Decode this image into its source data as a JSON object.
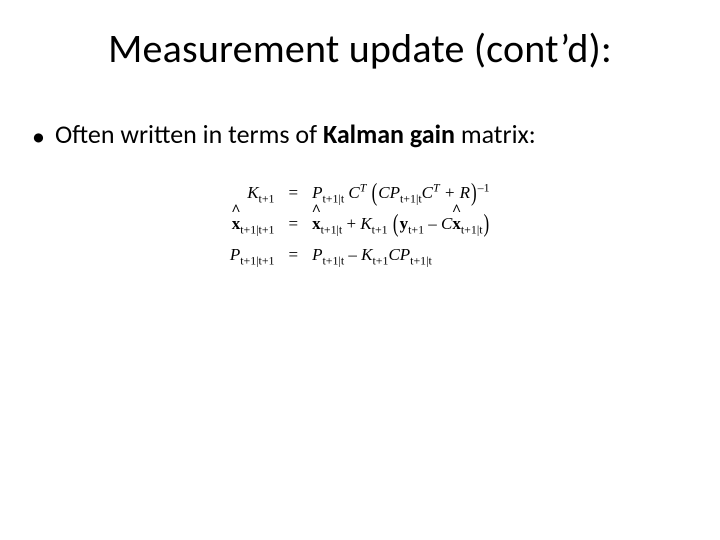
{
  "colors": {
    "background": "#ffffff",
    "text": "#000000"
  },
  "typography": {
    "title_family": "Calibri",
    "title_size_pt": 40,
    "bullet_size_pt": 26,
    "equation_family": "Times New Roman",
    "equation_size_pt": 17
  },
  "title": "Measurement update (cont’d):",
  "bullet": {
    "marker": "•",
    "prefix": "Often written in terms of ",
    "bold_term": "Kalman gain",
    "suffix": " matrix:"
  },
  "equations": {
    "eq_sign": "=",
    "lhs": {
      "K": "K",
      "x": "x",
      "P": "P",
      "sub_t1": "t+1",
      "sub_t1_t1": "t+1|t+1"
    },
    "rhs": {
      "row1": {
        "P": "P",
        "sub_t1_t": "t+1|t",
        "C": "C",
        "T": "T",
        "CP": "CP",
        "plusR": " + R",
        "sup_inv": "–1"
      },
      "row2": {
        "x": "x",
        "sub_t1_t": "t+1|t",
        "plus": " + ",
        "K": "K",
        "sub_t1": "t+1",
        "y": "y",
        "minus": " – ",
        "C": "C"
      },
      "row3": {
        "P": "P",
        "sub_t1_t": "t+1|t",
        "minus": " – ",
        "K": "K",
        "sub_t1": "t+1",
        "CP": "CP"
      }
    }
  }
}
